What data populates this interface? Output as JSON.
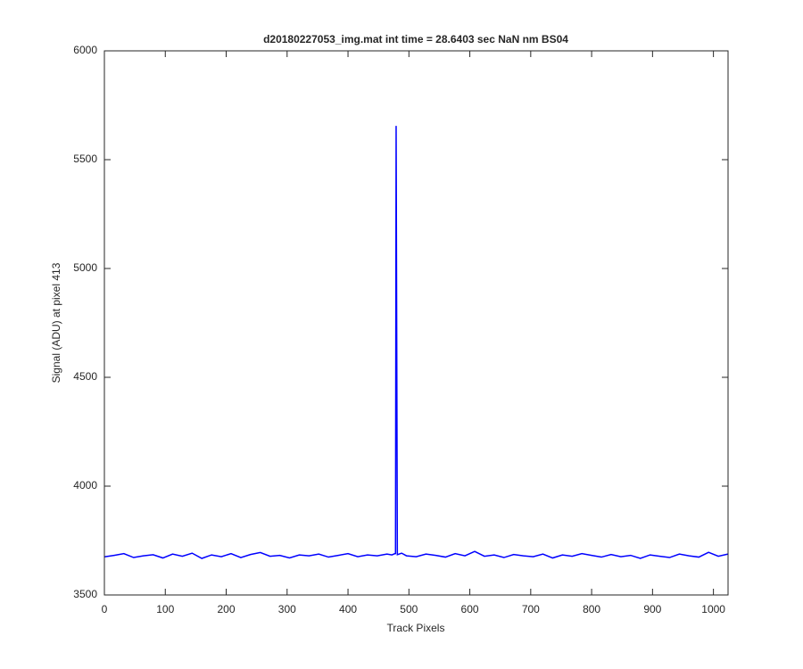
{
  "chart_data": {
    "type": "line",
    "title": "d20180227053_img.mat int time = 28.6403 sec  NaN nm BS04",
    "xlabel": "Track Pixels",
    "ylabel": "Signal (ADU) at pixel 413",
    "x": [
      0,
      16,
      32,
      48,
      64,
      80,
      96,
      112,
      128,
      144,
      160,
      176,
      192,
      208,
      224,
      240,
      256,
      272,
      288,
      304,
      320,
      336,
      352,
      368,
      384,
      400,
      416,
      432,
      448,
      464,
      472,
      477,
      478,
      479,
      481,
      488,
      496,
      512,
      528,
      544,
      560,
      576,
      592,
      608,
      624,
      640,
      656,
      672,
      688,
      704,
      720,
      736,
      752,
      768,
      784,
      800,
      816,
      832,
      848,
      864,
      880,
      896,
      912,
      928,
      944,
      960,
      976,
      992,
      1008,
      1024
    ],
    "series": [
      {
        "color": "#0000ff",
        "values": [
          3675,
          3682,
          3690,
          3672,
          3680,
          3685,
          3670,
          3688,
          3678,
          3692,
          3668,
          3684,
          3676,
          3690,
          3672,
          3686,
          3695,
          3678,
          3682,
          3670,
          3684,
          3680,
          3688,
          3674,
          3682,
          3690,
          3676,
          3684,
          3680,
          3688,
          3684,
          3690,
          3690,
          5655,
          3685,
          3692,
          3680,
          3676,
          3688,
          3682,
          3674,
          3690,
          3680,
          3700,
          3678,
          3684,
          3672,
          3686,
          3680,
          3676,
          3688,
          3670,
          3684,
          3678,
          3690,
          3682,
          3674,
          3686,
          3676,
          3682,
          3668,
          3684,
          3678,
          3672,
          3688,
          3680,
          3674,
          3696,
          3678,
          3688
        ]
      }
    ],
    "xlim": [
      0,
      1024
    ],
    "ylim": [
      3500,
      6000
    ],
    "xticks": [
      0,
      100,
      200,
      300,
      400,
      500,
      600,
      700,
      800,
      900,
      1000
    ],
    "yticks": [
      3500,
      4000,
      4500,
      5000,
      5500,
      6000
    ]
  }
}
